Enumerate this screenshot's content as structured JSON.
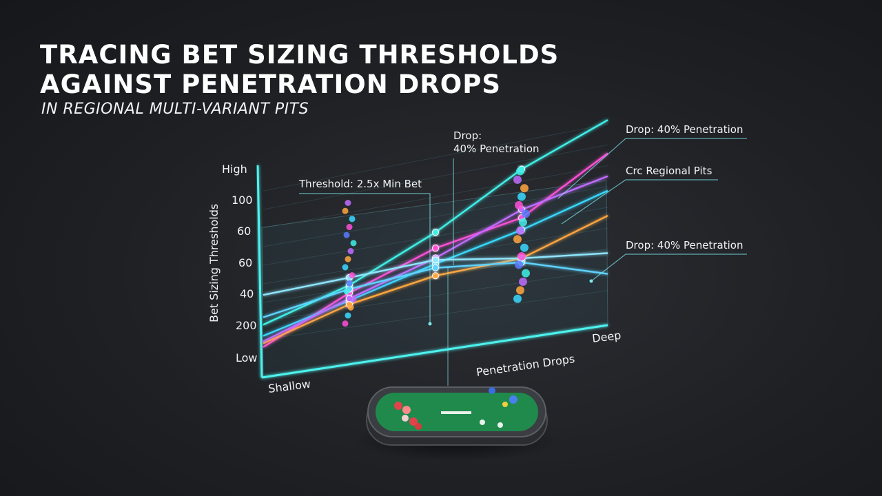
{
  "header": {
    "title_line1": "TRACING BET SIZING THRESHOLDS",
    "title_line2": "AGAINST PENETRATION DROPS",
    "subtitle": "IN REGIONAL MULTI-VARIANT PITS"
  },
  "chart_data": {
    "type": "line",
    "title": "TRACING BET SIZING THRESHOLDS AGAINST PENETRATION DROPS",
    "subtitle": "IN REGIONAL MULTI-VARIANT PITS",
    "xlabel": "Penetration Drops",
    "ylabel": "Bet Sizing Thresholds",
    "x_tick_labels": [
      "Shallow",
      "Deep"
    ],
    "y_tick_labels": [
      "Low",
      "200",
      "40",
      "60",
      "60",
      "100",
      "High"
    ],
    "x": [
      0,
      1,
      2,
      3,
      4
    ],
    "ylim": [
      0,
      10
    ],
    "grid": true,
    "series": [
      {
        "color": "#3ff0e8",
        "values": [
          1.8,
          3.2,
          5.2,
          7.6,
          9.2
        ]
      },
      {
        "color": "#ff4fd8",
        "values": [
          0.6,
          2.8,
          4.4,
          5.2,
          7.6
        ]
      },
      {
        "color": "#39d9ff",
        "values": [
          1.2,
          2.4,
          3.6,
          4.6,
          5.8
        ]
      },
      {
        "color": "#ffa640",
        "values": [
          0.8,
          2.2,
          3.0,
          3.2,
          4.6
        ]
      },
      {
        "color": "#c06cff",
        "values": [
          0.9,
          2.5,
          3.9,
          5.6,
          6.5
        ]
      },
      {
        "color": "#5fd3ff",
        "values": [
          2.2,
          3.0,
          3.4,
          3.0,
          1.8
        ]
      },
      {
        "color": "#8fe6ff",
        "values": [
          3.4,
          3.6,
          3.8,
          3.2,
          2.8
        ]
      }
    ],
    "annotations": [
      {
        "text": "Threshold: 2.5x Min Bet"
      },
      {
        "text": "Drop:",
        "text2": "40% Penetration"
      },
      {
        "text": "Drop: 40% Penetration"
      },
      {
        "text": "Crc Regional Pits"
      },
      {
        "text": "Drop: 40% Penetration"
      }
    ]
  }
}
